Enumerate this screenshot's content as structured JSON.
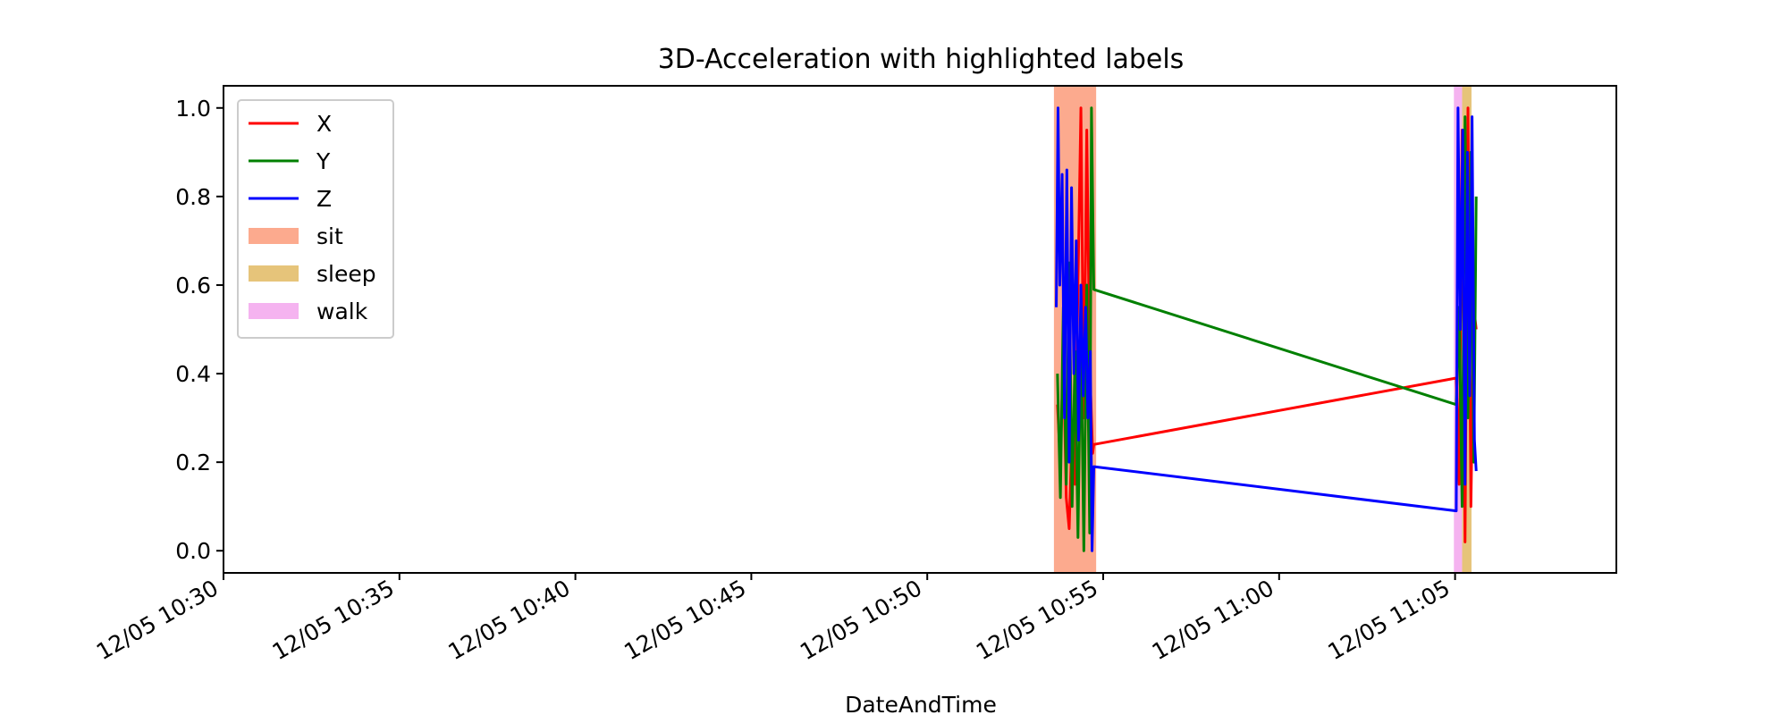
{
  "chart_data": {
    "type": "line",
    "title": "3D-Acceleration with highlighted labels",
    "xlabel": "DateAndTime",
    "ylabel": "",
    "x_unit": "time",
    "xlim": [
      "2017-12-05T10:30:00",
      "2017-12-05T11:09:35"
    ],
    "ylim": [
      -0.05,
      1.05
    ],
    "xticks": [
      {
        "t": "2017-12-05T10:30:00",
        "label": "12/05 10:30"
      },
      {
        "t": "2017-12-05T10:35:00",
        "label": "12/05 10:35"
      },
      {
        "t": "2017-12-05T10:40:00",
        "label": "12/05 10:40"
      },
      {
        "t": "2017-12-05T10:45:00",
        "label": "12/05 10:45"
      },
      {
        "t": "2017-12-05T10:50:00",
        "label": "12/05 10:50"
      },
      {
        "t": "2017-12-05T10:55:00",
        "label": "12/05 10:55"
      },
      {
        "t": "2017-12-05T11:00:00",
        "label": "12/05 11:00"
      },
      {
        "t": "2017-12-05T11:05:00",
        "label": "12/05 11:05"
      }
    ],
    "yticks": [
      0.0,
      0.2,
      0.4,
      0.6,
      0.8,
      1.0
    ],
    "ytick_labels": [
      "0.0",
      "0.2",
      "0.4",
      "0.6",
      "0.8",
      "1.0"
    ],
    "grid": false,
    "legend_position": "top-left",
    "series": [
      {
        "name": "X",
        "color": "#ff0000",
        "points": [
          [
            "2017-12-05T10:53:42",
            0.33
          ],
          [
            "2017-12-05T10:53:47",
            0.2
          ],
          [
            "2017-12-05T10:53:52",
            0.45
          ],
          [
            "2017-12-05T10:53:57",
            0.12
          ],
          [
            "2017-12-05T10:54:02",
            0.05
          ],
          [
            "2017-12-05T10:54:07",
            0.28
          ],
          [
            "2017-12-05T10:54:12",
            0.15
          ],
          [
            "2017-12-05T10:54:17",
            0.6
          ],
          [
            "2017-12-05T10:54:22",
            1.0
          ],
          [
            "2017-12-05T10:54:27",
            0.3
          ],
          [
            "2017-12-05T10:54:32",
            0.95
          ],
          [
            "2017-12-05T10:54:37",
            0.42
          ],
          [
            "2017-12-05T10:54:42",
            0.22
          ],
          [
            "2017-12-05T10:54:44",
            0.24
          ],
          [
            "2017-12-05T11:05:02",
            0.39
          ],
          [
            "2017-12-05T11:05:07",
            0.15
          ],
          [
            "2017-12-05T11:05:12",
            0.95
          ],
          [
            "2017-12-05T11:05:17",
            0.02
          ],
          [
            "2017-12-05T11:05:22",
            1.0
          ],
          [
            "2017-12-05T11:05:27",
            0.1
          ],
          [
            "2017-12-05T11:05:32",
            0.55
          ],
          [
            "2017-12-05T11:05:36",
            0.5
          ]
        ]
      },
      {
        "name": "Y",
        "color": "#008000",
        "points": [
          [
            "2017-12-05T10:53:42",
            0.4
          ],
          [
            "2017-12-05T10:53:47",
            0.12
          ],
          [
            "2017-12-05T10:53:52",
            0.55
          ],
          [
            "2017-12-05T10:53:57",
            0.15
          ],
          [
            "2017-12-05T10:54:02",
            0.65
          ],
          [
            "2017-12-05T10:54:07",
            0.1
          ],
          [
            "2017-12-05T10:54:12",
            0.45
          ],
          [
            "2017-12-05T10:54:17",
            0.03
          ],
          [
            "2017-12-05T10:54:22",
            0.5
          ],
          [
            "2017-12-05T10:54:27",
            0.0
          ],
          [
            "2017-12-05T10:54:32",
            0.6
          ],
          [
            "2017-12-05T10:54:37",
            0.04
          ],
          [
            "2017-12-05T10:54:40",
            1.0
          ],
          [
            "2017-12-05T10:54:44",
            0.59
          ],
          [
            "2017-12-05T11:05:02",
            0.33
          ],
          [
            "2017-12-05T11:05:07",
            0.55
          ],
          [
            "2017-12-05T11:05:12",
            0.1
          ],
          [
            "2017-12-05T11:05:17",
            0.98
          ],
          [
            "2017-12-05T11:05:22",
            0.3
          ],
          [
            "2017-12-05T11:05:27",
            0.9
          ],
          [
            "2017-12-05T11:05:32",
            0.2
          ],
          [
            "2017-12-05T11:05:36",
            0.8
          ]
        ]
      },
      {
        "name": "Z",
        "color": "#0000ff",
        "points": [
          [
            "2017-12-05T10:53:40",
            0.55
          ],
          [
            "2017-12-05T10:53:43",
            1.0
          ],
          [
            "2017-12-05T10:53:46",
            0.6
          ],
          [
            "2017-12-05T10:53:50",
            0.85
          ],
          [
            "2017-12-05T10:53:54",
            0.3
          ],
          [
            "2017-12-05T10:53:58",
            0.86
          ],
          [
            "2017-12-05T10:54:02",
            0.2
          ],
          [
            "2017-12-05T10:54:06",
            0.82
          ],
          [
            "2017-12-05T10:54:10",
            0.4
          ],
          [
            "2017-12-05T10:54:14",
            0.7
          ],
          [
            "2017-12-05T10:54:18",
            0.25
          ],
          [
            "2017-12-05T10:54:22",
            0.6
          ],
          [
            "2017-12-05T10:54:26",
            0.35
          ],
          [
            "2017-12-05T10:54:30",
            0.55
          ],
          [
            "2017-12-05T10:54:34",
            0.3
          ],
          [
            "2017-12-05T10:54:38",
            0.45
          ],
          [
            "2017-12-05T10:54:41",
            0.0
          ],
          [
            "2017-12-05T10:54:44",
            0.19
          ],
          [
            "2017-12-05T11:05:02",
            0.09
          ],
          [
            "2017-12-05T11:05:05",
            1.0
          ],
          [
            "2017-12-05T11:05:09",
            0.5
          ],
          [
            "2017-12-05T11:05:13",
            0.95
          ],
          [
            "2017-12-05T11:05:17",
            0.15
          ],
          [
            "2017-12-05T11:05:21",
            0.9
          ],
          [
            "2017-12-05T11:05:25",
            0.35
          ],
          [
            "2017-12-05T11:05:29",
            0.98
          ],
          [
            "2017-12-05T11:05:33",
            0.25
          ],
          [
            "2017-12-05T11:05:36",
            0.18
          ]
        ]
      }
    ],
    "spans": [
      {
        "name": "sit",
        "color": "#fcaa8e",
        "start": "2017-12-05T10:53:36",
        "end": "2017-12-05T10:54:48"
      },
      {
        "name": "walk",
        "color": "#f5b3f0",
        "start": "2017-12-05T11:04:58",
        "end": "2017-12-05T11:05:12"
      },
      {
        "name": "sleep",
        "color": "#e6c47a",
        "start": "2017-12-05T11:05:12",
        "end": "2017-12-05T11:05:28"
      }
    ],
    "legend": [
      {
        "name": "X",
        "kind": "line",
        "color": "#ff0000"
      },
      {
        "name": "Y",
        "kind": "line",
        "color": "#008000"
      },
      {
        "name": "Z",
        "kind": "line",
        "color": "#0000ff"
      },
      {
        "name": "sit",
        "kind": "patch",
        "color": "#fcaa8e"
      },
      {
        "name": "sleep",
        "kind": "patch",
        "color": "#e6c47a"
      },
      {
        "name": "walk",
        "kind": "patch",
        "color": "#f5b3f0"
      }
    ]
  }
}
